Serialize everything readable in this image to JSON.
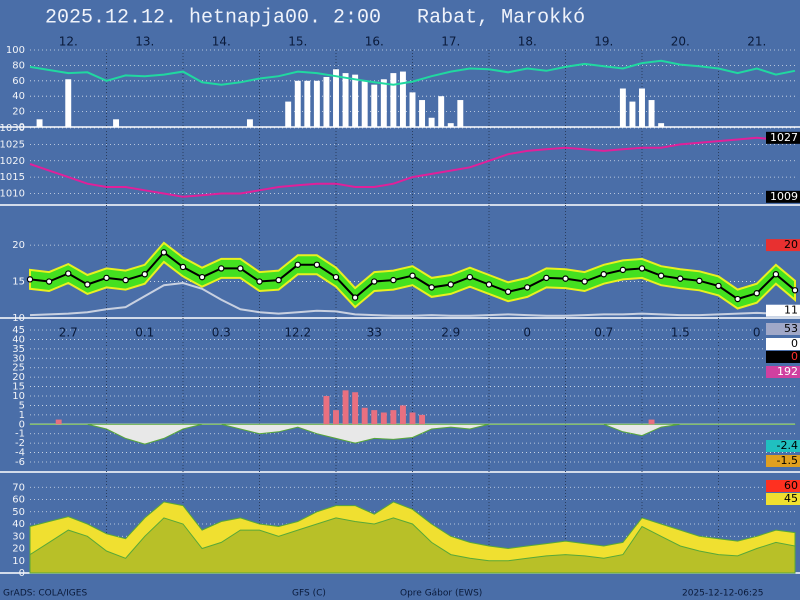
{
  "header": {
    "title": "2025.12.12. hetnapja00. 2:00   Rabat, Marokkó",
    "days": [
      "12.",
      "13.",
      "14.",
      "15.",
      "16.",
      "17.",
      "18.",
      "19.",
      "20.",
      "21."
    ]
  },
  "chart_data": [
    {
      "type": "combo",
      "ylim": [
        0,
        100
      ],
      "yticks": [
        0,
        20,
        40,
        60,
        80,
        100
      ],
      "grid": true,
      "series": [
        {
          "type": "bar",
          "color": "#ffffff",
          "values": [
            0,
            10,
            0,
            0,
            62,
            0,
            0,
            0,
            0,
            10,
            0,
            0,
            0,
            0,
            0,
            0,
            0,
            0,
            0,
            0,
            0,
            0,
            0,
            10,
            0,
            0,
            0,
            33,
            60,
            60,
            60,
            65,
            75,
            70,
            68,
            60,
            55,
            62,
            70,
            72,
            45,
            35,
            12,
            40,
            5,
            35,
            0,
            0,
            0,
            0,
            0,
            0,
            0,
            0,
            0,
            0,
            0,
            0,
            0,
            0,
            0,
            0,
            50,
            33,
            50,
            35,
            5,
            0,
            0,
            0,
            0,
            0,
            0,
            0,
            0,
            0,
            0,
            0,
            0,
            0,
            0
          ]
        },
        {
          "type": "line",
          "color": "#20d8a0",
          "values": [
            78,
            74,
            70,
            71,
            60,
            67,
            66,
            68,
            72,
            58,
            55,
            58,
            63,
            66,
            72,
            70,
            66,
            62,
            58,
            55,
            59,
            66,
            72,
            76,
            75,
            71,
            76,
            73,
            78,
            82,
            79,
            76,
            83,
            86,
            81,
            79,
            76,
            70,
            76,
            68,
            73
          ]
        }
      ]
    },
    {
      "type": "combo",
      "ylim": [
        1006.5,
        1030
      ],
      "yticks": [
        1010,
        1015,
        1020,
        1025,
        1030
      ],
      "grid": true,
      "series": [
        {
          "type": "line",
          "color": "#e0209a",
          "values": [
            1019,
            1017,
            1015,
            1013,
            1012,
            1012,
            1011,
            1010,
            1009,
            1009.5,
            1010,
            1010,
            1011,
            1012,
            1012.5,
            1013,
            1013,
            1012,
            1012,
            1013,
            1015,
            1016,
            1017,
            1018,
            1020,
            1022,
            1023,
            1023.5,
            1024,
            1023.5,
            1023,
            1023.5,
            1024,
            1024,
            1025,
            1025.5,
            1026,
            1026.5,
            1027,
            1026.5,
            1026
          ]
        }
      ],
      "markers": [
        {
          "value": 1027,
          "color": "#000000",
          "text_color": "#ffffff"
        },
        {
          "value": 1009,
          "color": "#000000",
          "text_color": "#ffffff"
        }
      ]
    },
    {
      "type": "combo",
      "ylim": [
        10,
        25.5
      ],
      "yticks": [
        10,
        15,
        20
      ],
      "grid": true,
      "series": [
        {
          "type": "band",
          "color": "#44e020",
          "low": [
            14.0,
            13.7,
            14.8,
            13.3,
            14.2,
            13.9,
            14.7,
            17.7,
            15.7,
            14.3,
            15.5,
            15.5,
            13.7,
            13.9,
            16.0,
            16.0,
            14.3,
            11.5,
            13.7,
            13.9,
            14.5,
            12.9,
            13.3,
            14.3,
            13.3,
            12.3,
            12.9,
            14.2,
            14.1,
            13.7,
            14.7,
            15.3,
            15.5,
            14.5,
            14.1,
            13.8,
            13.1,
            11.3,
            12.1,
            14.7,
            12.5
          ],
          "high": [
            16.6,
            16.3,
            17.4,
            15.9,
            16.8,
            16.5,
            17.3,
            20.3,
            18.3,
            16.9,
            18.1,
            18.1,
            16.3,
            16.5,
            18.6,
            18.6,
            16.9,
            14.1,
            16.3,
            16.5,
            17.1,
            15.5,
            15.9,
            16.9,
            15.9,
            14.9,
            15.5,
            16.8,
            16.7,
            16.3,
            17.3,
            17.9,
            18.1,
            17.1,
            16.7,
            16.4,
            15.7,
            13.9,
            14.7,
            17.3,
            15.1
          ]
        },
        {
          "type": "line",
          "color": "#c8d0e0",
          "values": [
            10.4,
            10.5,
            10.6,
            10.8,
            11.2,
            11.5,
            13.0,
            14.5,
            14.8,
            14.0,
            12.5,
            11.2,
            10.8,
            10.6,
            10.8,
            11.0,
            10.9,
            10.5,
            10.4,
            10.3,
            10.3,
            10.4,
            10.3,
            10.3,
            10.4,
            10.5,
            10.4,
            10.3,
            10.3,
            10.4,
            10.5,
            10.5,
            10.6,
            10.5,
            10.4,
            10.4,
            10.5,
            10.6,
            10.7,
            10.6,
            10.5
          ]
        },
        {
          "type": "dotline",
          "color": "#000000",
          "marker": "#ffffff",
          "values": [
            15.3,
            15.0,
            16.1,
            14.6,
            15.5,
            15.2,
            16.0,
            19.0,
            17.0,
            15.6,
            16.8,
            16.8,
            15.0,
            15.2,
            17.3,
            17.3,
            15.6,
            12.8,
            15.0,
            15.2,
            15.8,
            14.2,
            14.6,
            15.6,
            14.6,
            13.6,
            14.2,
            15.5,
            15.4,
            15.0,
            16.0,
            16.6,
            16.8,
            15.8,
            15.4,
            15.1,
            14.4,
            12.6,
            13.4,
            16.0,
            13.8
          ]
        }
      ],
      "markers": [
        {
          "value": 20,
          "color": "#e83030",
          "text_color": "#000000"
        },
        {
          "value": 11,
          "color": "#ffffff",
          "text_color": "#000000"
        }
      ]
    },
    {
      "type": "combo",
      "scale": "tick-spaced",
      "yticks": [
        45,
        40,
        35,
        30,
        25,
        20,
        15,
        10,
        5,
        1,
        0,
        -1,
        -2,
        -4,
        -6
      ],
      "grid": true,
      "amounts": [
        2.7,
        0.1,
        0.3,
        12.2,
        33,
        2.9,
        0,
        0.7,
        1.5,
        0
      ],
      "series": [
        {
          "type": "area",
          "color": "#e8e8e8",
          "values": [
            0,
            0,
            0,
            0,
            -0.5,
            -1.5,
            -2.2,
            -1.5,
            -0.5,
            0,
            0,
            -0.5,
            -1,
            -0.8,
            -0.3,
            -1,
            -1.5,
            -2,
            -1.5,
            -1.6,
            -1.4,
            -0.5,
            -0.3,
            -0.5,
            0,
            0,
            0,
            0,
            0,
            0,
            0,
            -0.8,
            -1.2,
            -0.3,
            0,
            0,
            0,
            0,
            0,
            0,
            0
          ]
        },
        {
          "type": "bar",
          "color": "#e87080",
          "values": [
            0,
            0,
            0,
            0.5,
            0,
            0,
            0,
            0,
            0,
            0,
            0,
            0,
            0,
            0,
            0,
            0,
            0,
            0,
            0,
            0,
            0,
            0,
            0,
            0,
            0,
            0,
            0,
            0,
            0,
            0,
            0,
            10,
            3,
            13,
            12,
            4,
            3,
            2,
            3,
            5,
            2,
            1,
            0,
            0,
            0,
            0,
            0,
            0,
            0,
            0,
            0,
            0,
            0,
            0,
            0,
            0,
            0,
            0,
            0,
            0,
            0,
            0,
            0,
            0,
            0,
            0.5,
            0,
            0,
            0,
            0,
            0,
            0,
            0,
            0,
            0,
            0,
            0,
            0,
            0,
            0,
            0
          ]
        }
      ],
      "markers": [
        {
          "value": 53,
          "color": "#a0a8c8",
          "text_color": "#000000"
        },
        {
          "value": 0,
          "color": "#ffffff",
          "text_color": "#000000"
        },
        {
          "value": 0,
          "color": "#000000",
          "text_color": "#ff3030"
        },
        {
          "value": 192,
          "color": "#d040a0",
          "text_color": "#ffffff"
        },
        {
          "value": -2.4,
          "color": "#20c0c0",
          "text_color": "#000000"
        },
        {
          "value": -1.5,
          "color": "#e0a020",
          "text_color": "#000000"
        }
      ]
    },
    {
      "type": "combo",
      "ylim": [
        0,
        80
      ],
      "yticks": [
        0,
        10,
        20,
        30,
        40,
        50,
        60,
        70
      ],
      "grid": true,
      "series": [
        {
          "type": "area",
          "color": "#f0e030",
          "values": [
            38,
            42,
            46,
            40,
            32,
            28,
            45,
            58,
            55,
            35,
            42,
            45,
            40,
            38,
            42,
            50,
            55,
            55,
            48,
            58,
            52,
            40,
            30,
            25,
            22,
            20,
            22,
            24,
            26,
            24,
            22,
            25,
            45,
            40,
            35,
            30,
            28,
            26,
            30,
            35,
            33
          ]
        },
        {
          "type": "area",
          "color": "#b8c028",
          "values": [
            15,
            25,
            35,
            30,
            18,
            12,
            30,
            45,
            40,
            20,
            25,
            35,
            35,
            30,
            35,
            40,
            45,
            42,
            40,
            45,
            40,
            25,
            15,
            12,
            10,
            10,
            12,
            14,
            15,
            14,
            12,
            15,
            38,
            30,
            22,
            18,
            15,
            14,
            20,
            25,
            22
          ]
        }
      ],
      "markers": [
        {
          "value": 60,
          "color": "#ff3020",
          "text_color": "#000000"
        },
        {
          "value": 45,
          "color": "#f0e030",
          "text_color": "#000000"
        }
      ]
    }
  ],
  "footer": [
    "GrADS: COLA/IGES",
    "GFS (C)",
    "Opre Gábor (EWS)",
    "2025-12-12-06:25"
  ]
}
